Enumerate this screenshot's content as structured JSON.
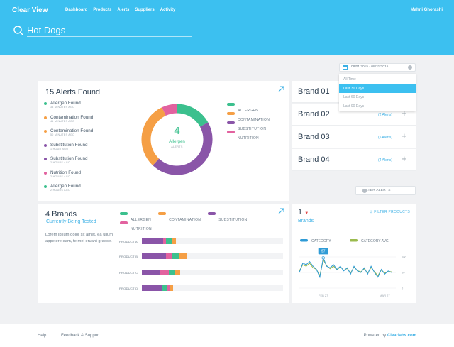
{
  "header": {
    "brand": "Clear View",
    "nav": [
      {
        "label": "Dashboard",
        "active": false
      },
      {
        "label": "Products",
        "active": false
      },
      {
        "label": "Alerts",
        "active": true
      },
      {
        "label": "Suppliers",
        "active": false
      },
      {
        "label": "Activity",
        "active": false
      }
    ],
    "user": "Mahni Ghorashi",
    "search_value": "Hot Dogs"
  },
  "alerts_card": {
    "title": "15 Alerts Found",
    "donut_count": "4",
    "donut_label": "Allergen",
    "donut_sub": "ALERTS",
    "items": [
      {
        "label": "Allergen Found",
        "time": "34 MINUTES AGO",
        "type": "allergen"
      },
      {
        "label": "Contamination Found",
        "time": "41 MINUTES AGO",
        "type": "contamination"
      },
      {
        "label": "Contamination Found",
        "time": "50 MINUTES AGO",
        "type": "contamination"
      },
      {
        "label": "Substitution Found",
        "time": "1 HOUR AGO",
        "type": "substitution"
      },
      {
        "label": "Substitution Found",
        "time": "2 HOURS AGO",
        "type": "substitution"
      },
      {
        "label": "Nutrition Found",
        "time": "2 HOURS AGO",
        "type": "nutrition"
      },
      {
        "label": "Allergen Found",
        "time": "2 HOURS AGO",
        "type": "allergen"
      }
    ],
    "legend": [
      {
        "label": "ALLERGEN",
        "type": "allergen"
      },
      {
        "label": "CONTAMINATION",
        "type": "contamination"
      },
      {
        "label": "SUBSTITUTION",
        "type": "substitution"
      },
      {
        "label": "NUTRITION",
        "type": "nutrition"
      }
    ],
    "donut_segments": [
      {
        "type": "allergen",
        "value": 17
      },
      {
        "type": "substitution",
        "value": 45
      },
      {
        "type": "contamination",
        "value": 31
      },
      {
        "type": "nutrition",
        "value": 7
      }
    ]
  },
  "colors": {
    "allergen": "#3cc08e",
    "contamination": "#f59f45",
    "substitution": "#8a55a8",
    "nutrition": "#e2629f",
    "category": "#2f9bd6",
    "category_avg": "#9bbb4e",
    "accent": "#3cc0f0"
  },
  "brands_list": [
    {
      "name": "Brand 01",
      "alerts": ""
    },
    {
      "name": "Brand 02",
      "alerts": "(2 Alerts)"
    },
    {
      "name": "Brand 03",
      "alerts": "(5 Alerts)"
    },
    {
      "name": "Brand 04",
      "alerts": "(4 Alerts)"
    }
  ],
  "date_filter": {
    "value": "08/01/2015 - 08/31/2015",
    "options": [
      {
        "label": "All Time",
        "selected": false
      },
      {
        "label": "Last 30 Days",
        "selected": true
      },
      {
        "label": "Last 60 Days",
        "selected": false
      },
      {
        "label": "Last 90 Days",
        "selected": false
      }
    ]
  },
  "filter_alerts_label": "FILTER ALERTS",
  "brands_card": {
    "title": "4 Brands",
    "subtitle": "Currently Being Tested",
    "text": "Lorem ipsum dolor sit amet, ea ullum appetere eam, te mei eruant graece.",
    "legend": [
      {
        "label": "ALLERGEN",
        "type": "allergen"
      },
      {
        "label": "CONTAMINATION",
        "type": "contamination"
      },
      {
        "label": "SUBSTITUTION",
        "type": "substitution"
      },
      {
        "label": "NUTRITION",
        "type": "nutrition"
      }
    ],
    "products": [
      {
        "label": "PRODUCT A",
        "segments": [
          {
            "type": "substitution",
            "value": 15
          },
          {
            "type": "nutrition",
            "value": 2
          },
          {
            "type": "allergen",
            "value": 4
          },
          {
            "type": "contamination",
            "value": 3
          }
        ]
      },
      {
        "label": "PRODUCT B",
        "segments": [
          {
            "type": "substitution",
            "value": 17
          },
          {
            "type": "nutrition",
            "value": 4
          },
          {
            "type": "allergen",
            "value": 5
          },
          {
            "type": "contamination",
            "value": 6
          }
        ]
      },
      {
        "label": "PRODUCT C",
        "segments": [
          {
            "type": "substitution",
            "value": 13
          },
          {
            "type": "nutrition",
            "value": 6
          },
          {
            "type": "allergen",
            "value": 4
          },
          {
            "type": "contamination",
            "value": 4
          }
        ]
      },
      {
        "label": "PRODUCT D",
        "segments": [
          {
            "type": "substitution",
            "value": 14
          },
          {
            "type": "allergen",
            "value": 4
          },
          {
            "type": "nutrition",
            "value": 2
          },
          {
            "type": "contamination",
            "value": 2
          }
        ]
      }
    ]
  },
  "trend_card": {
    "count": "1",
    "title": "Brands",
    "filter_label": "FILTER PRODUCTS"
  },
  "chart_data": {
    "type": "line",
    "x": [
      1,
      2,
      3,
      4,
      5,
      6,
      7,
      8,
      9,
      10,
      11,
      12,
      13,
      14,
      15,
      16,
      17,
      18,
      19,
      20,
      21,
      22,
      23,
      24,
      25,
      26,
      27,
      28
    ],
    "x_tick_labels": [
      "FEB 27",
      "MAR 27"
    ],
    "x_tick_positions": [
      8,
      26
    ],
    "series": [
      {
        "name": "CATEGORY",
        "values": [
          50,
          80,
          75,
          85,
          70,
          60,
          35,
          97,
          70,
          65,
          75,
          60,
          70,
          55,
          65,
          45,
          70,
          55,
          50,
          65,
          45,
          70,
          50,
          35,
          60,
          45,
          55,
          50
        ]
      },
      {
        "name": "CATEGORY AVG.",
        "values": [
          55,
          75,
          70,
          80,
          65,
          60,
          40,
          90,
          72,
          62,
          70,
          58,
          68,
          57,
          63,
          48,
          68,
          56,
          52,
          62,
          48,
          66,
          52,
          40,
          58,
          48,
          54,
          52
        ]
      }
    ],
    "y_ticks": [
      100,
      50,
      0
    ],
    "ylim": [
      0,
      100
    ],
    "annotation": {
      "label": "97",
      "x": 8,
      "y": 97
    },
    "grid": true
  }
}
